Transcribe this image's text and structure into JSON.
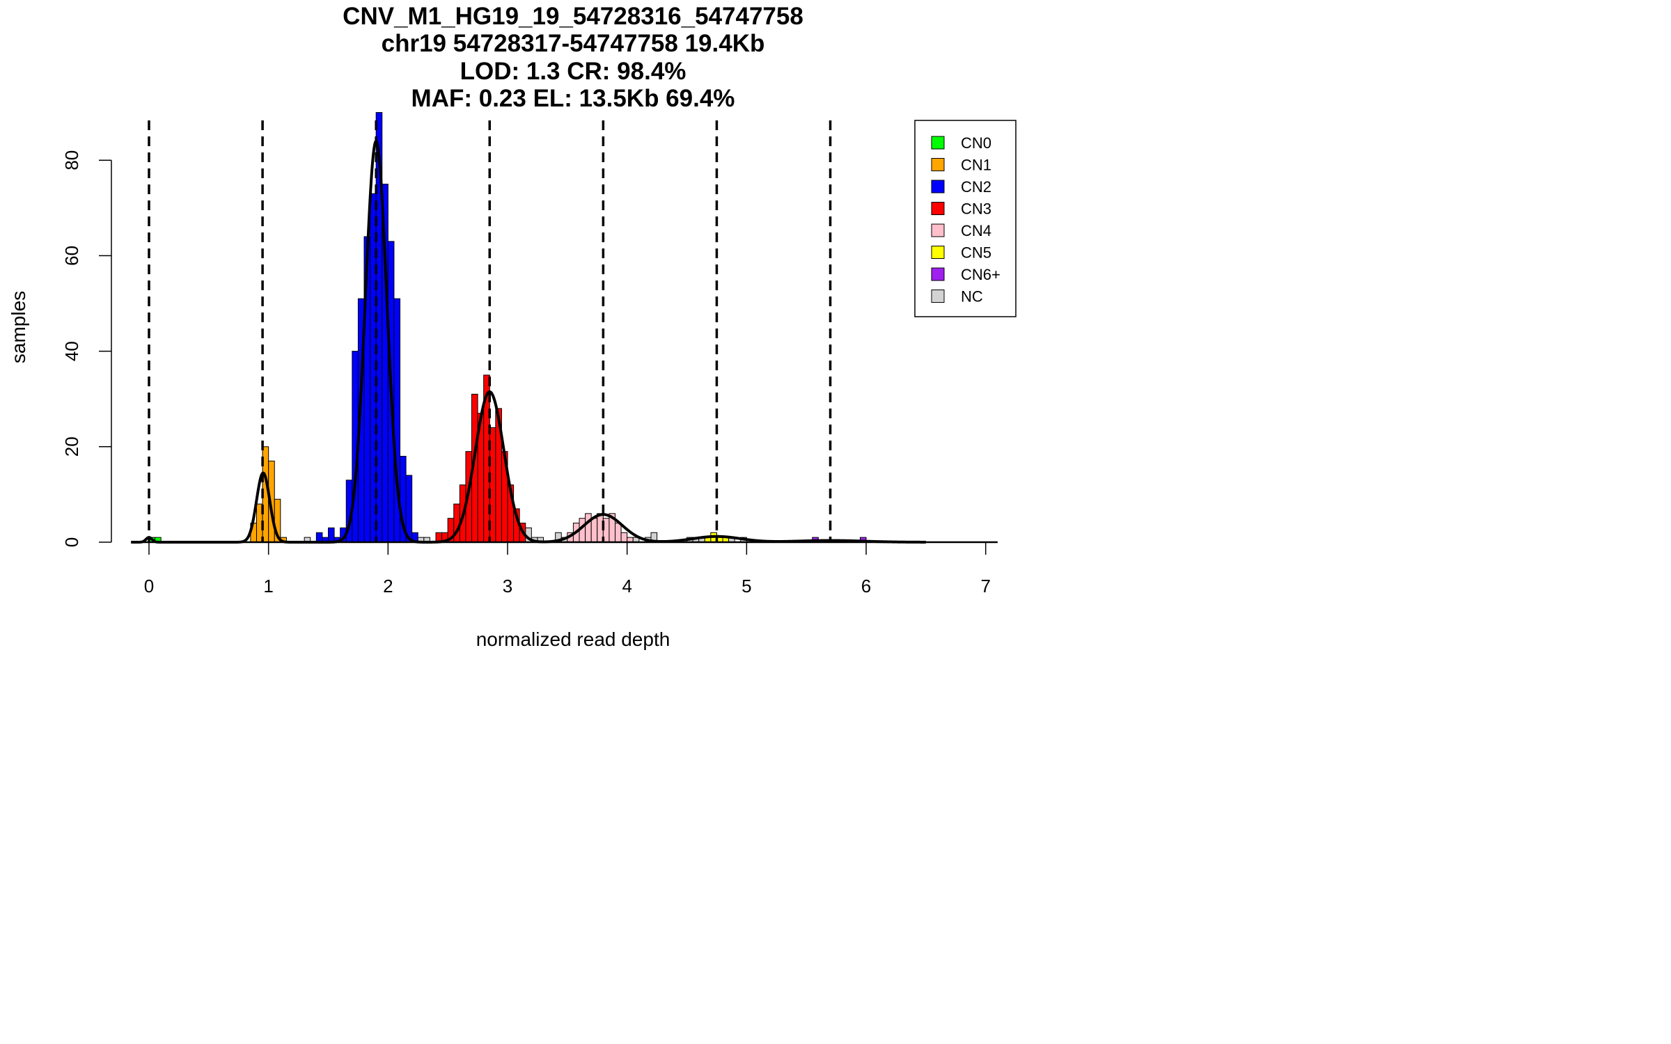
{
  "chart_data": {
    "type": "histogram",
    "title_lines": [
      "CNV_M1_HG19_19_54728316_54747758",
      "chr19 54728317-54747758 19.4Kb",
      "LOD: 1.3 CR: 98.4%",
      "MAF: 0.23 EL: 13.5Kb 69.4%"
    ],
    "xlabel": "normalized read depth",
    "ylabel": "samples",
    "xlim": [
      -0.15,
      7.1
    ],
    "ylim": [
      0,
      90
    ],
    "x_ticks": [
      0,
      1,
      2,
      3,
      4,
      5,
      6,
      7
    ],
    "y_ticks": [
      0,
      20,
      40,
      60,
      80
    ],
    "bin_width": 0.05,
    "dashed_lines": [
      0,
      0.95,
      1.9,
      2.85,
      3.8,
      4.75,
      5.7
    ],
    "legend": [
      {
        "label": "CN0",
        "color": "#00ff00"
      },
      {
        "label": "CN1",
        "color": "#ffa500"
      },
      {
        "label": "CN2",
        "color": "#0000ff"
      },
      {
        "label": "CN3",
        "color": "#ff0000"
      },
      {
        "label": "CN4",
        "color": "#ffc0cb"
      },
      {
        "label": "CN5",
        "color": "#ffff00"
      },
      {
        "label": "CN6+",
        "color": "#a020f0"
      },
      {
        "label": "NC",
        "color": "#d3d3d3"
      }
    ],
    "bars": [
      {
        "x": 0.0,
        "count": 1,
        "cn": "CN0"
      },
      {
        "x": 0.05,
        "count": 1,
        "cn": "CN0"
      },
      {
        "x": 0.85,
        "count": 4,
        "cn": "CN1"
      },
      {
        "x": 0.9,
        "count": 8,
        "cn": "CN1"
      },
      {
        "x": 0.95,
        "count": 20,
        "cn": "CN1"
      },
      {
        "x": 1.0,
        "count": 17,
        "cn": "CN1"
      },
      {
        "x": 1.05,
        "count": 9,
        "cn": "CN1"
      },
      {
        "x": 1.1,
        "count": 1,
        "cn": "CN1"
      },
      {
        "x": 1.3,
        "count": 1,
        "cn": "NC"
      },
      {
        "x": 1.4,
        "count": 2,
        "cn": "CN2"
      },
      {
        "x": 1.45,
        "count": 1,
        "cn": "CN2"
      },
      {
        "x": 1.5,
        "count": 3,
        "cn": "CN2"
      },
      {
        "x": 1.55,
        "count": 1,
        "cn": "CN2"
      },
      {
        "x": 1.6,
        "count": 3,
        "cn": "CN2"
      },
      {
        "x": 1.65,
        "count": 13,
        "cn": "CN2"
      },
      {
        "x": 1.7,
        "count": 40,
        "cn": "CN2"
      },
      {
        "x": 1.75,
        "count": 51,
        "cn": "CN2"
      },
      {
        "x": 1.8,
        "count": 64,
        "cn": "CN2"
      },
      {
        "x": 1.85,
        "count": 73,
        "cn": "CN2"
      },
      {
        "x": 1.9,
        "count": 90,
        "cn": "CN2"
      },
      {
        "x": 1.95,
        "count": 75,
        "cn": "CN2"
      },
      {
        "x": 2.0,
        "count": 63,
        "cn": "CN2"
      },
      {
        "x": 2.05,
        "count": 51,
        "cn": "CN2"
      },
      {
        "x": 2.1,
        "count": 18,
        "cn": "CN2"
      },
      {
        "x": 2.15,
        "count": 14,
        "cn": "CN2"
      },
      {
        "x": 2.2,
        "count": 2,
        "cn": "CN2"
      },
      {
        "x": 2.25,
        "count": 1,
        "cn": "NC"
      },
      {
        "x": 2.3,
        "count": 1,
        "cn": "NC"
      },
      {
        "x": 2.4,
        "count": 2,
        "cn": "CN3"
      },
      {
        "x": 2.45,
        "count": 2,
        "cn": "CN3"
      },
      {
        "x": 2.5,
        "count": 5,
        "cn": "CN3"
      },
      {
        "x": 2.55,
        "count": 8,
        "cn": "CN3"
      },
      {
        "x": 2.6,
        "count": 12,
        "cn": "CN3"
      },
      {
        "x": 2.65,
        "count": 19,
        "cn": "CN3"
      },
      {
        "x": 2.7,
        "count": 31,
        "cn": "CN3"
      },
      {
        "x": 2.75,
        "count": 27,
        "cn": "CN3"
      },
      {
        "x": 2.8,
        "count": 35,
        "cn": "CN3"
      },
      {
        "x": 2.85,
        "count": 24,
        "cn": "CN3"
      },
      {
        "x": 2.9,
        "count": 28,
        "cn": "CN3"
      },
      {
        "x": 2.95,
        "count": 19,
        "cn": "CN3"
      },
      {
        "x": 3.0,
        "count": 12,
        "cn": "CN3"
      },
      {
        "x": 3.05,
        "count": 7,
        "cn": "CN3"
      },
      {
        "x": 3.1,
        "count": 4,
        "cn": "CN3"
      },
      {
        "x": 3.15,
        "count": 3,
        "cn": "NC"
      },
      {
        "x": 3.2,
        "count": 1,
        "cn": "NC"
      },
      {
        "x": 3.25,
        "count": 1,
        "cn": "NC"
      },
      {
        "x": 3.4,
        "count": 2,
        "cn": "NC"
      },
      {
        "x": 3.45,
        "count": 1,
        "cn": "NC"
      },
      {
        "x": 3.5,
        "count": 2,
        "cn": "CN4"
      },
      {
        "x": 3.55,
        "count": 4,
        "cn": "CN4"
      },
      {
        "x": 3.6,
        "count": 5,
        "cn": "CN4"
      },
      {
        "x": 3.65,
        "count": 6,
        "cn": "CN4"
      },
      {
        "x": 3.7,
        "count": 5,
        "cn": "CN4"
      },
      {
        "x": 3.75,
        "count": 6,
        "cn": "CN4"
      },
      {
        "x": 3.8,
        "count": 5,
        "cn": "CN4"
      },
      {
        "x": 3.85,
        "count": 6,
        "cn": "CN4"
      },
      {
        "x": 3.9,
        "count": 4,
        "cn": "CN4"
      },
      {
        "x": 3.95,
        "count": 2,
        "cn": "CN4"
      },
      {
        "x": 4.0,
        "count": 1,
        "cn": "CN4"
      },
      {
        "x": 4.05,
        "count": 1,
        "cn": "NC"
      },
      {
        "x": 4.15,
        "count": 1,
        "cn": "NC"
      },
      {
        "x": 4.2,
        "count": 2,
        "cn": "NC"
      },
      {
        "x": 4.5,
        "count": 1,
        "cn": "NC"
      },
      {
        "x": 4.55,
        "count": 1,
        "cn": "NC"
      },
      {
        "x": 4.6,
        "count": 1,
        "cn": "NC"
      },
      {
        "x": 4.65,
        "count": 1,
        "cn": "CN5"
      },
      {
        "x": 4.7,
        "count": 2,
        "cn": "CN5"
      },
      {
        "x": 4.75,
        "count": 1,
        "cn": "CN5"
      },
      {
        "x": 4.8,
        "count": 1,
        "cn": "CN5"
      },
      {
        "x": 4.85,
        "count": 1,
        "cn": "NC"
      },
      {
        "x": 4.95,
        "count": 1,
        "cn": "NC"
      },
      {
        "x": 5.55,
        "count": 1,
        "cn": "CN6+"
      },
      {
        "x": 5.95,
        "count": 1,
        "cn": "CN6+"
      }
    ],
    "fit_components": [
      {
        "mean": 0.0,
        "sd": 0.025,
        "height": 1
      },
      {
        "mean": 0.955,
        "sd": 0.055,
        "height": 14.5
      },
      {
        "mean": 1.9,
        "sd": 0.09,
        "height": 84
      },
      {
        "mean": 2.85,
        "sd": 0.12,
        "height": 31.5
      },
      {
        "mean": 3.8,
        "sd": 0.16,
        "height": 5.8
      },
      {
        "mean": 4.75,
        "sd": 0.2,
        "height": 1.2
      },
      {
        "mean": 5.7,
        "sd": 0.28,
        "height": 0.35
      }
    ],
    "fit_range": [
      -0.15,
      6.5
    ]
  }
}
